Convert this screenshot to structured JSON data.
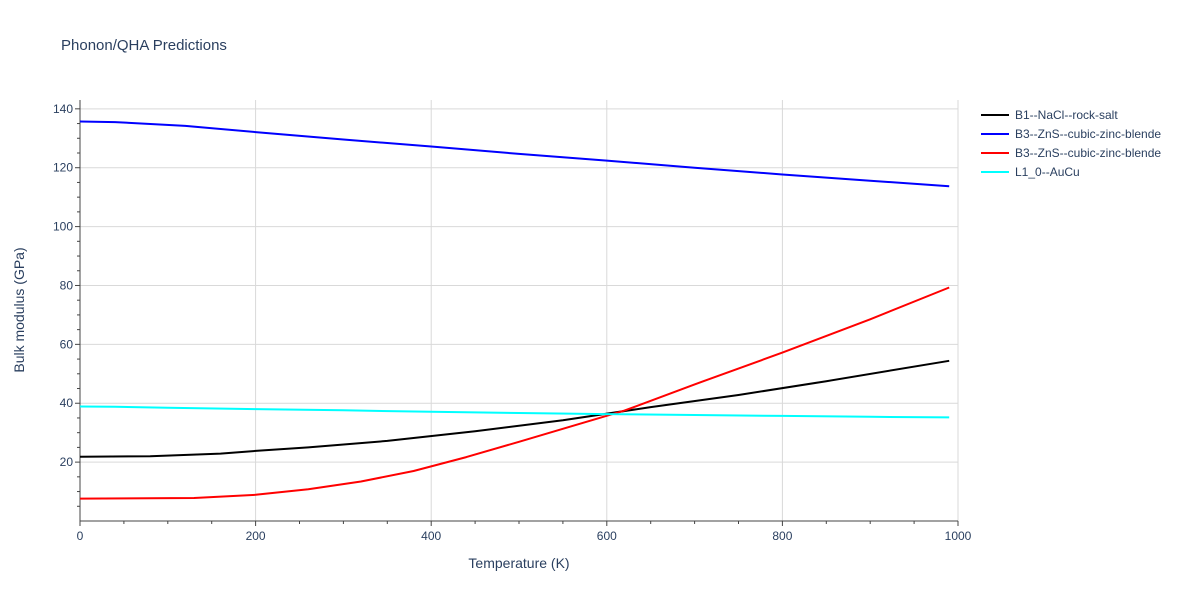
{
  "chart_data": {
    "type": "line",
    "title": "Phonon/QHA Predictions",
    "xlabel": "Temperature (K)",
    "ylabel": "Bulk modulus (GPa)",
    "xlim": [
      0,
      1000
    ],
    "ylim": [
      0,
      143
    ],
    "x_ticks": [
      0,
      200,
      400,
      600,
      800,
      1000
    ],
    "y_ticks": [
      20,
      40,
      60,
      80,
      100,
      120,
      140
    ],
    "grid": true,
    "legend_position": "right",
    "series": [
      {
        "name": "B1--NaCl--rock-salt",
        "color": "#000000",
        "x": [
          0,
          80,
          160,
          200,
          260,
          350,
          450,
          550,
          650,
          750,
          850,
          990
        ],
        "y": [
          21.8,
          22.0,
          22.9,
          23.8,
          25.0,
          27.2,
          30.5,
          34.2,
          38.7,
          42.8,
          47.5,
          54.4
        ]
      },
      {
        "name": "B3--ZnS--cubic-zinc-blende",
        "color": "#0000ff",
        "x": [
          0,
          40,
          120,
          200,
          300,
          400,
          500,
          600,
          700,
          800,
          900,
          990
        ],
        "y": [
          135.7,
          135.5,
          134.2,
          132.1,
          129.6,
          127.2,
          124.7,
          122.4,
          120.0,
          117.7,
          115.6,
          113.7
        ]
      },
      {
        "name": "B3--ZnS--cubic-zinc-blende",
        "color": "#ff0000",
        "x": [
          0,
          130,
          200,
          260,
          320,
          380,
          440,
          500,
          560,
          620,
          700,
          800,
          900,
          990
        ],
        "y": [
          7.6,
          7.8,
          8.9,
          10.8,
          13.4,
          17.0,
          21.7,
          26.9,
          32.2,
          37.5,
          46.4,
          57.2,
          68.5,
          79.3
        ]
      },
      {
        "name": "L1_0--AuCu",
        "color": "#00ffff",
        "x": [
          0,
          40,
          100,
          200,
          300,
          400,
          500,
          600,
          700,
          800,
          900,
          990
        ],
        "y": [
          38.9,
          38.8,
          38.5,
          38.0,
          37.6,
          37.1,
          36.7,
          36.3,
          36.0,
          35.7,
          35.4,
          35.2
        ]
      }
    ]
  }
}
